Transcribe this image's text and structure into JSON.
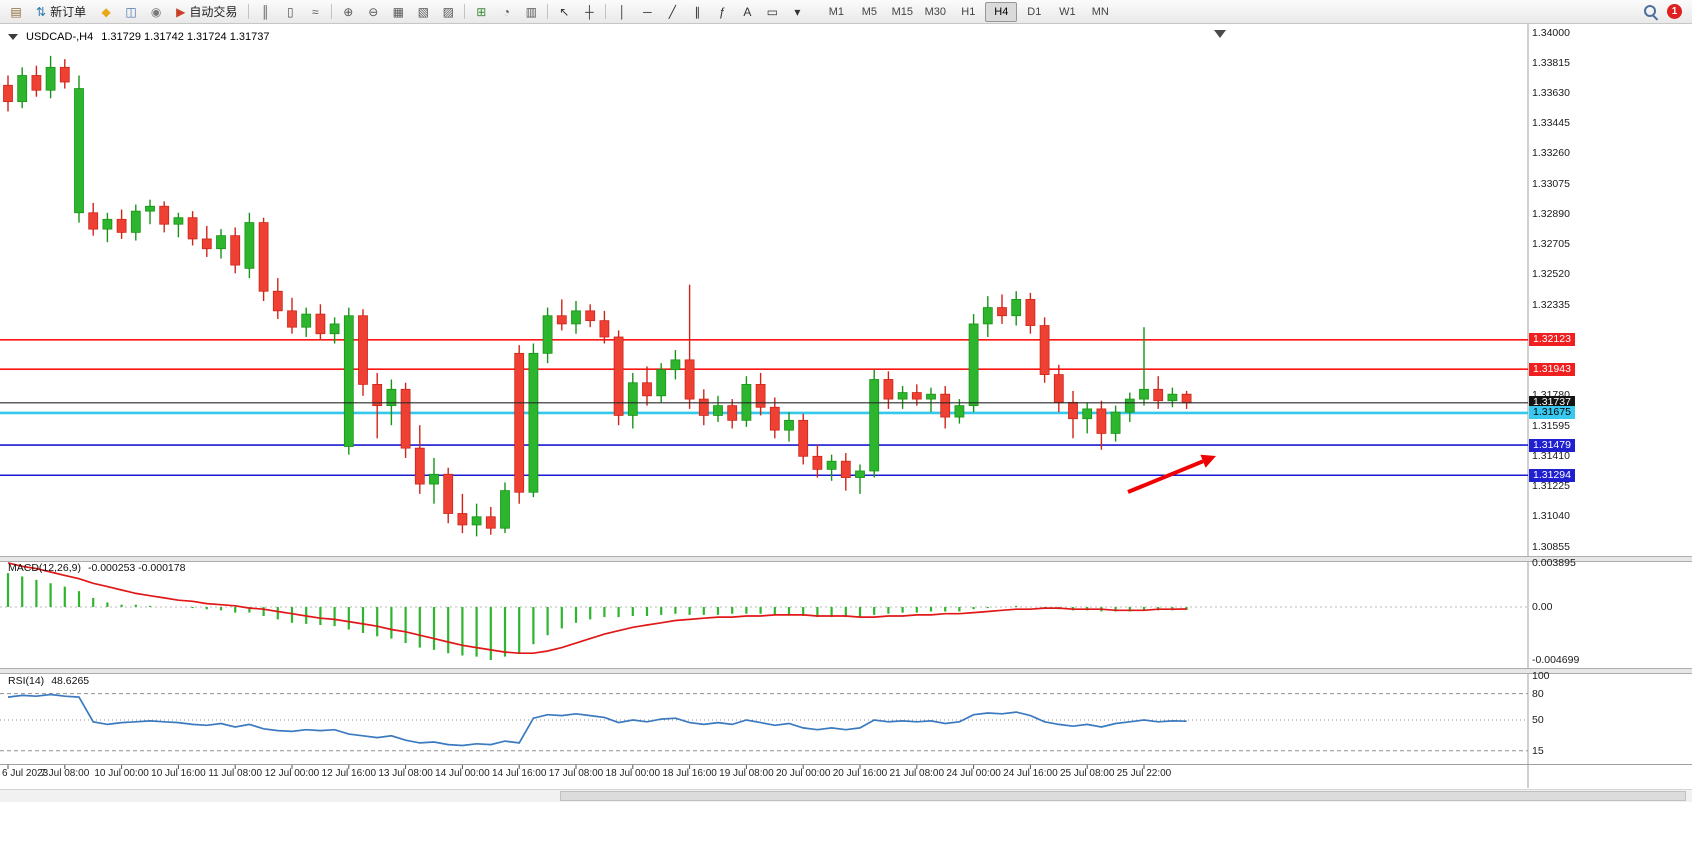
{
  "toolbar": {
    "left_items": [
      {
        "name": "new-chart-button",
        "glyph": "▤",
        "color": "#8a6a3a"
      },
      {
        "name": "new-order-button",
        "glyph": "⇅",
        "color": "#2a7ab0",
        "label": "新订单"
      },
      {
        "name": "market-watch-button",
        "glyph": "◆",
        "color": "#e8a818"
      },
      {
        "name": "profiles-button",
        "glyph": "◫",
        "color": "#4878b0"
      },
      {
        "name": "data-window-button",
        "glyph": "◉",
        "color": "#7a7a7a"
      },
      {
        "name": "auto-trading-button",
        "glyph": "▶",
        "color": "#c84028",
        "label": "自动交易"
      },
      {
        "type": "sep"
      },
      {
        "name": "chart-bars-button",
        "glyph": "║",
        "color": "#555555"
      },
      {
        "name": "chart-candles-button",
        "glyph": "▯",
        "color": "#555555"
      },
      {
        "name": "chart-line-button",
        "glyph": "≈",
        "color": "#555555"
      },
      {
        "type": "sep"
      },
      {
        "name": "zoom-in-button",
        "glyph": "⊕",
        "color": "#555555"
      },
      {
        "name": "zoom-out-button",
        "glyph": "⊖",
        "color": "#555555"
      },
      {
        "name": "tile-windows-button",
        "glyph": "▦",
        "color": "#555555"
      },
      {
        "name": "cascade-windows-button",
        "glyph": "▧",
        "color": "#555555"
      },
      {
        "name": "arrange-windows-button",
        "glyph": "▨",
        "color": "#555555"
      },
      {
        "type": "sep"
      },
      {
        "name": "indicators-button",
        "glyph": "⊞",
        "color": "#3a8a3a"
      },
      {
        "name": "period-button",
        "glyph": "◔",
        "color": "#555555"
      },
      {
        "name": "templates-button",
        "glyph": "▥",
        "color": "#555555"
      },
      {
        "type": "sep"
      },
      {
        "name": "cursor-button",
        "glyph": "↖",
        "color": "#333333"
      },
      {
        "name": "crosshair-button",
        "glyph": "┼",
        "color": "#333333"
      },
      {
        "type": "sep"
      },
      {
        "name": "vertical-line-button",
        "glyph": "│",
        "color": "#333333"
      },
      {
        "name": "horizontal-line-button",
        "glyph": "─",
        "color": "#333333"
      },
      {
        "name": "trendline-button",
        "glyph": "╱",
        "color": "#333333"
      },
      {
        "name": "channel-button",
        "glyph": "∥",
        "color": "#333333"
      },
      {
        "name": "fibonacci-button",
        "glyph": "ƒ",
        "color": "#333333"
      },
      {
        "name": "text-button",
        "glyph": "A",
        "color": "#333333"
      },
      {
        "name": "label-button",
        "glyph": "▭",
        "color": "#333333"
      },
      {
        "name": "shapes-button",
        "glyph": "▾",
        "color": "#333333"
      }
    ],
    "timeframes": {
      "items": [
        "M1",
        "M5",
        "M15",
        "M30",
        "H1",
        "H4",
        "D1",
        "W1",
        "MN"
      ],
      "active": "H4"
    },
    "notification_count": "1"
  },
  "chart_header": {
    "symbol_period": "USDCAD-,H4",
    "ohlc": "1.31729 1.31742 1.31724 1.31737"
  },
  "price_axis": {
    "tick_labels": [
      "1.34000",
      "1.33815",
      "1.33630",
      "1.33445",
      "1.33260",
      "1.33075",
      "1.32890",
      "1.32705",
      "1.32520",
      "1.32335",
      "1.31780",
      "1.31595",
      "1.31410",
      "1.31225",
      "1.31040",
      "1.30855"
    ],
    "badges": [
      {
        "price": 1.32123,
        "text": "1.32123",
        "bg": "#f02020",
        "fg": "#ffffff"
      },
      {
        "price": 1.31943,
        "text": "1.31943",
        "bg": "#f02020",
        "fg": "#ffffff"
      },
      {
        "price": 1.31737,
        "text": "1.31737",
        "bg": "#141414",
        "fg": "#ffffff"
      },
      {
        "price": 1.31675,
        "text": "1.31675",
        "bg": "#38c8f0",
        "fg": "#000000"
      },
      {
        "price": 1.31479,
        "text": "1.31479",
        "bg": "#2020d0",
        "fg": "#ffffff"
      },
      {
        "price": 1.31294,
        "text": "1.31294",
        "bg": "#2020d0",
        "fg": "#ffffff"
      }
    ]
  },
  "time_axis": {
    "labels": [
      "6 Jul 2023",
      "7 Jul 08:00",
      "10 Jul 00:00",
      "10 Jul 16:00",
      "11 Jul 08:00",
      "12 Jul 00:00",
      "12 Jul 16:00",
      "13 Jul 08:00",
      "14 Jul 00:00",
      "14 Jul 16:00",
      "17 Jul 08:00",
      "18 Jul 00:00",
      "18 Jul 16:00",
      "19 Jul 08:00",
      "20 Jul 00:00",
      "20 Jul 16:00",
      "21 Jul 08:00",
      "24 Jul 00:00",
      "24 Jul 16:00",
      "25 Jul 08:00",
      "25 Jul 22:00"
    ]
  },
  "macd_panel": {
    "label": "MACD(12,26,9)",
    "values_text": "-0.000253 -0.000178",
    "scale_labels": [
      "0.003895",
      "0.00",
      "-0.004699"
    ]
  },
  "rsi_panel": {
    "label": "RSI(14)",
    "value_text": "48.6265",
    "scale_labels": [
      "100",
      "80",
      "50",
      "15"
    ]
  },
  "colors": {
    "bull": "#2db52d",
    "bull_stroke": "#179417",
    "bear": "#ef4034",
    "bear_stroke": "#cf2418",
    "macd_histogram": "#2db52d",
    "macd_signal": "#e01818",
    "rsi_line": "#3b7abf",
    "arrow": "#f00000",
    "bid_line": "#2a2a2a"
  },
  "chart_data": {
    "type": "candlestick",
    "symbol": "USDCAD",
    "period": "H4",
    "ohlc_current": [
      1.31729,
      1.31742,
      1.31724,
      1.31737
    ],
    "current_price": 1.31737,
    "horizontal_lines": [
      {
        "price": 1.32123,
        "color": "#ff1414",
        "width": 1.6
      },
      {
        "price": 1.31943,
        "color": "#ff1414",
        "width": 1.6
      },
      {
        "price": 1.31675,
        "color": "#35c8ec",
        "width": 2.6
      },
      {
        "price": 1.31479,
        "color": "#1a1ad2",
        "width": 1.6
      },
      {
        "price": 1.31294,
        "color": "#1a1ad2",
        "width": 1.6
      }
    ],
    "bars": [
      [
        1.3368,
        1.3374,
        1.3352,
        1.3358
      ],
      [
        1.3358,
        1.3379,
        1.3354,
        1.3374
      ],
      [
        1.3374,
        1.338,
        1.3361,
        1.3365
      ],
      [
        1.3365,
        1.3386,
        1.336,
        1.3379
      ],
      [
        1.3379,
        1.3384,
        1.3366,
        1.337
      ],
      [
        1.329,
        1.3374,
        1.3284,
        1.3366
      ],
      [
        1.329,
        1.3296,
        1.3276,
        1.328
      ],
      [
        1.328,
        1.329,
        1.3272,
        1.3286
      ],
      [
        1.3286,
        1.3292,
        1.3274,
        1.3278
      ],
      [
        1.3278,
        1.3295,
        1.3273,
        1.3291
      ],
      [
        1.3291,
        1.3298,
        1.3283,
        1.3294
      ],
      [
        1.3294,
        1.3297,
        1.3278,
        1.3283
      ],
      [
        1.3283,
        1.329,
        1.3275,
        1.3287
      ],
      [
        1.3287,
        1.3291,
        1.327,
        1.3274
      ],
      [
        1.3274,
        1.3282,
        1.3263,
        1.3268
      ],
      [
        1.3268,
        1.328,
        1.3262,
        1.3276
      ],
      [
        1.3276,
        1.3281,
        1.3253,
        1.3258
      ],
      [
        1.3256,
        1.329,
        1.325,
        1.3284
      ],
      [
        1.3284,
        1.3287,
        1.3236,
        1.3242
      ],
      [
        1.3242,
        1.325,
        1.3225,
        1.323
      ],
      [
        1.323,
        1.3238,
        1.3216,
        1.322
      ],
      [
        1.322,
        1.3232,
        1.3214,
        1.3228
      ],
      [
        1.3228,
        1.3234,
        1.3212,
        1.3216
      ],
      [
        1.3216,
        1.3226,
        1.321,
        1.3222
      ],
      [
        1.3147,
        1.3232,
        1.3142,
        1.3227
      ],
      [
        1.3227,
        1.3231,
        1.3178,
        1.3185
      ],
      [
        1.3185,
        1.3192,
        1.3152,
        1.3172
      ],
      [
        1.3172,
        1.3188,
        1.316,
        1.3182
      ],
      [
        1.3182,
        1.3186,
        1.314,
        1.3146
      ],
      [
        1.3146,
        1.316,
        1.3118,
        1.3124
      ],
      [
        1.3124,
        1.314,
        1.3112,
        1.313
      ],
      [
        1.313,
        1.3134,
        1.31,
        1.3106
      ],
      [
        1.3106,
        1.3118,
        1.3094,
        1.3099
      ],
      [
        1.3099,
        1.3112,
        1.3092,
        1.3104
      ],
      [
        1.3104,
        1.311,
        1.3093,
        1.3097
      ],
      [
        1.3097,
        1.3125,
        1.3094,
        1.312
      ],
      [
        1.3204,
        1.3209,
        1.3112,
        1.3119
      ],
      [
        1.3119,
        1.321,
        1.3116,
        1.3204
      ],
      [
        1.3204,
        1.3232,
        1.3198,
        1.3227
      ],
      [
        1.3227,
        1.3237,
        1.3218,
        1.3222
      ],
      [
        1.3222,
        1.3236,
        1.3216,
        1.323
      ],
      [
        1.323,
        1.3234,
        1.322,
        1.3224
      ],
      [
        1.3224,
        1.323,
        1.321,
        1.3214
      ],
      [
        1.3214,
        1.3218,
        1.316,
        1.3166
      ],
      [
        1.3166,
        1.3192,
        1.3158,
        1.3186
      ],
      [
        1.3186,
        1.3196,
        1.3172,
        1.3178
      ],
      [
        1.3178,
        1.3198,
        1.3174,
        1.3194
      ],
      [
        1.3194,
        1.3206,
        1.3188,
        1.32
      ],
      [
        1.32,
        1.3246,
        1.317,
        1.3176
      ],
      [
        1.3176,
        1.3182,
        1.316,
        1.3166
      ],
      [
        1.3166,
        1.3178,
        1.3162,
        1.3172
      ],
      [
        1.3172,
        1.3176,
        1.3158,
        1.3163
      ],
      [
        1.3163,
        1.319,
        1.3159,
        1.3185
      ],
      [
        1.3185,
        1.3192,
        1.3166,
        1.3171
      ],
      [
        1.3171,
        1.3177,
        1.3152,
        1.3157
      ],
      [
        1.3157,
        1.3168,
        1.315,
        1.3163
      ],
      [
        1.3163,
        1.3167,
        1.3136,
        1.3141
      ],
      [
        1.3141,
        1.3148,
        1.3128,
        1.3133
      ],
      [
        1.3133,
        1.3142,
        1.3126,
        1.3138
      ],
      [
        1.3138,
        1.3143,
        1.312,
        1.3128
      ],
      [
        1.3128,
        1.3136,
        1.3118,
        1.3132
      ],
      [
        1.3132,
        1.3194,
        1.3128,
        1.3188
      ],
      [
        1.3188,
        1.3193,
        1.317,
        1.3176
      ],
      [
        1.3176,
        1.3184,
        1.317,
        1.318
      ],
      [
        1.318,
        1.3185,
        1.3172,
        1.3176
      ],
      [
        1.3176,
        1.3183,
        1.3168,
        1.3179
      ],
      [
        1.3179,
        1.3184,
        1.3158,
        1.3165
      ],
      [
        1.3165,
        1.3176,
        1.3161,
        1.3172
      ],
      [
        1.3172,
        1.3228,
        1.3168,
        1.3222
      ],
      [
        1.3222,
        1.3239,
        1.3214,
        1.3232
      ],
      [
        1.3232,
        1.324,
        1.3222,
        1.3227
      ],
      [
        1.3227,
        1.3242,
        1.3221,
        1.3237
      ],
      [
        1.3237,
        1.3241,
        1.3216,
        1.3221
      ],
      [
        1.3221,
        1.3226,
        1.3186,
        1.3191
      ],
      [
        1.3191,
        1.3197,
        1.3168,
        1.3174
      ],
      [
        1.3174,
        1.3181,
        1.3152,
        1.3164
      ],
      [
        1.3164,
        1.3174,
        1.3155,
        1.317
      ],
      [
        1.317,
        1.3175,
        1.3145,
        1.3155
      ],
      [
        1.3155,
        1.3172,
        1.315,
        1.3168
      ],
      [
        1.3168,
        1.318,
        1.3162,
        1.3176
      ],
      [
        1.3176,
        1.322,
        1.3172,
        1.3182
      ],
      [
        1.3182,
        1.319,
        1.317,
        1.3175
      ],
      [
        1.3175,
        1.3183,
        1.3171,
        1.3179
      ],
      [
        1.3179,
        1.3181,
        1.317,
        1.31737
      ]
    ],
    "indicators": [
      {
        "name": "MACD",
        "params": "12,26,9",
        "values": [
          -0.000253,
          -0.000178
        ],
        "scale": [
          0.003895,
          0.0,
          -0.004699
        ],
        "histogram": [
          0.003,
          0.0027,
          0.0024,
          0.0021,
          0.0018,
          0.0014,
          0.0008,
          0.0004,
          0.0002,
          0.0002,
          0.0001,
          0.0,
          0.0,
          -0.0001,
          -0.0002,
          -0.0003,
          -0.0005,
          -0.0005,
          -0.0008,
          -0.0011,
          -0.0014,
          -0.0015,
          -0.0016,
          -0.0017,
          -0.002,
          -0.0023,
          -0.0026,
          -0.0028,
          -0.0032,
          -0.0036,
          -0.0038,
          -0.0041,
          -0.0043,
          -0.0044,
          -0.0047,
          -0.0044,
          -0.0041,
          -0.0033,
          -0.0025,
          -0.0019,
          -0.0014,
          -0.0011,
          -0.0009,
          -0.0009,
          -0.0008,
          -0.0008,
          -0.0007,
          -0.0006,
          -0.0007,
          -0.0007,
          -0.0007,
          -0.0006,
          -0.0006,
          -0.0006,
          -0.0007,
          -0.0007,
          -0.0008,
          -0.0009,
          -0.0009,
          -0.0009,
          -0.0009,
          -0.0007,
          -0.0006,
          -0.0005,
          -0.0005,
          -0.0004,
          -0.0004,
          -0.0004,
          -0.0002,
          -0.0001,
          0.0,
          0.0001,
          0.0,
          -0.0001,
          -0.0002,
          -0.0003,
          -0.0003,
          -0.0004,
          -0.0004,
          -0.0004,
          -0.0003,
          -0.0003,
          -0.0003,
          -0.000253
        ],
        "signal": [
          0.0039,
          0.0036,
          0.0034,
          0.0031,
          0.0028,
          0.0025,
          0.0021,
          0.0018,
          0.0015,
          0.0012,
          0.001,
          0.0008,
          0.0006,
          0.0005,
          0.0003,
          0.0002,
          0.0001,
          -0.0001,
          -0.0002,
          -0.0004,
          -0.0006,
          -0.0008,
          -0.001,
          -0.0011,
          -0.0013,
          -0.0015,
          -0.0017,
          -0.002,
          -0.0022,
          -0.0025,
          -0.0028,
          -0.0031,
          -0.0034,
          -0.0036,
          -0.0038,
          -0.004,
          -0.0041,
          -0.0041,
          -0.0039,
          -0.0036,
          -0.0032,
          -0.0028,
          -0.0024,
          -0.0021,
          -0.0018,
          -0.0016,
          -0.0014,
          -0.0012,
          -0.0011,
          -0.001,
          -0.0009,
          -0.0009,
          -0.0008,
          -0.0008,
          -0.0007,
          -0.0007,
          -0.0007,
          -0.0008,
          -0.0008,
          -0.0008,
          -0.0009,
          -0.0009,
          -0.0008,
          -0.0008,
          -0.0007,
          -0.0007,
          -0.0006,
          -0.0006,
          -0.0005,
          -0.0004,
          -0.0003,
          -0.0002,
          -0.0002,
          -0.0001,
          -0.0001,
          -0.0002,
          -0.0002,
          -0.0002,
          -0.0003,
          -0.0003,
          -0.0003,
          -0.0002,
          -0.0002,
          -0.000178
        ]
      },
      {
        "name": "RSI",
        "params": "14",
        "value": 48.6265,
        "scale": [
          100,
          80,
          50,
          15
        ],
        "values": [
          76,
          78,
          77,
          79,
          77,
          76,
          48,
          45,
          47,
          48,
          49,
          48,
          47,
          45,
          44,
          46,
          42,
          45,
          40,
          38,
          37,
          39,
          38,
          39,
          34,
          32,
          30,
          32,
          27,
          24,
          25,
          22,
          21,
          23,
          22,
          26,
          24,
          52,
          56,
          55,
          57,
          55,
          53,
          47,
          50,
          48,
          51,
          52,
          47,
          45,
          47,
          45,
          50,
          47,
          44,
          46,
          41,
          39,
          41,
          39,
          41,
          50,
          48,
          49,
          48,
          49,
          46,
          48,
          56,
          58,
          57,
          59,
          55,
          48,
          45,
          43,
          45,
          42,
          46,
          48,
          50,
          48,
          49,
          48.6
        ]
      }
    ]
  }
}
